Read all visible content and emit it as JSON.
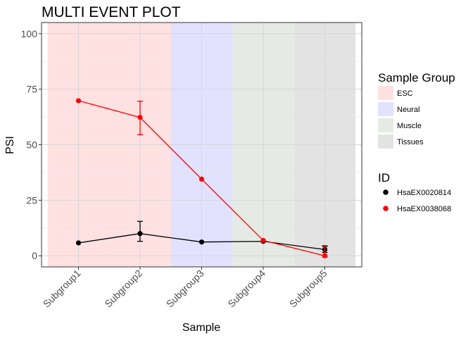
{
  "chart_data": {
    "type": "line",
    "title": "MULTI EVENT PLOT",
    "xlabel": "Sample",
    "ylabel": "PSI",
    "categories": [
      "Subgroup1",
      "Subgroup2",
      "Subgroup3",
      "Subgroup4",
      "Subgroup5"
    ],
    "ylim": [
      -5,
      105
    ],
    "yticks": [
      0,
      25,
      50,
      75,
      100
    ],
    "ytick_labels": [
      "0",
      "25",
      "50",
      "75",
      "100"
    ],
    "grid": true,
    "background_bands": [
      {
        "group": "ESC",
        "from": 0.5,
        "to": 2.5,
        "color": "#ffe1e1"
      },
      {
        "group": "Neural",
        "from": 2.5,
        "to": 3.5,
        "color": "#e2e2ff"
      },
      {
        "group": "Muscle",
        "from": 3.5,
        "to": 4.5,
        "color": "#e5ebe4"
      },
      {
        "group": "Tissues",
        "from": 4.5,
        "to": 5.5,
        "color": "#e3e3e3"
      }
    ],
    "series": [
      {
        "name": "HsaEX0020814",
        "color": "#000000",
        "values": [
          5.8,
          10.0,
          6.2,
          6.5,
          2.8
        ],
        "error_bars": [
          null,
          [
            6.5,
            15.5
          ],
          null,
          null,
          [
            1.5,
            4.2
          ]
        ]
      },
      {
        "name": "HsaEX0038068",
        "color": "#ff0000",
        "values": [
          69.8,
          62.3,
          34.5,
          6.9,
          0.0
        ],
        "error_bars": [
          null,
          [
            54.5,
            69.6
          ],
          null,
          null,
          [
            -0.6,
            4.6
          ]
        ]
      }
    ],
    "legends": {
      "sample_group": {
        "title": "Sample Group",
        "position": "right",
        "items": [
          {
            "label": "ESC",
            "color": "#ffe1e1"
          },
          {
            "label": "Neural",
            "color": "#e2e2ff"
          },
          {
            "label": "Muscle",
            "color": "#e5ebe4"
          },
          {
            "label": "Tissues",
            "color": "#e3e3e3"
          }
        ]
      },
      "id": {
        "title": "ID",
        "position": "right",
        "items": [
          {
            "label": "HsaEX0020814",
            "color": "#000000"
          },
          {
            "label": "HsaEX0038068",
            "color": "#ff0000"
          }
        ]
      }
    }
  }
}
